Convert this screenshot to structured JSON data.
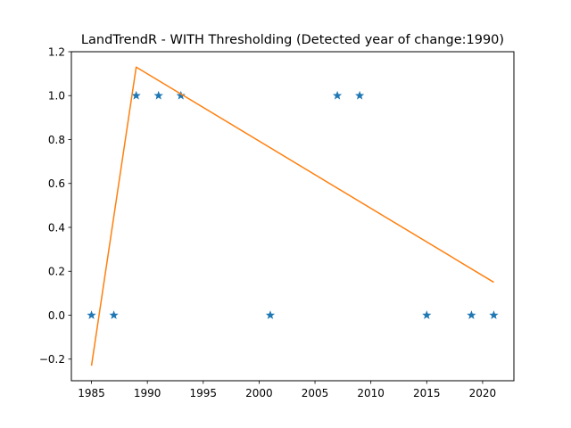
{
  "chart_data": {
    "type": "line",
    "title": "LandTrendR - WITH Thresholding (Detected year of change:1990)",
    "xlabel": "",
    "ylabel": "",
    "xlim": [
      1983.2,
      2022.8
    ],
    "ylim": [
      -0.2985,
      1.2
    ],
    "grid": false,
    "x_ticks": [
      1985,
      1990,
      1995,
      2000,
      2005,
      2010,
      2015,
      2020
    ],
    "y_ticks": [
      -0.2,
      0.0,
      0.2,
      0.4,
      0.6,
      0.8,
      1.0,
      1.2
    ],
    "y_tick_labels": [
      "−0.2",
      "0.0",
      "0.2",
      "0.4",
      "0.6",
      "0.8",
      "1.0",
      "1.2"
    ],
    "series": [
      {
        "kind": "scatter",
        "marker": "star",
        "color": "#1f77b4",
        "points": [
          [
            1985,
            0.0
          ],
          [
            1987,
            0.0
          ],
          [
            1989,
            1.0
          ],
          [
            1991,
            1.0
          ],
          [
            1993,
            1.0
          ],
          [
            2001,
            0.0
          ],
          [
            2007,
            1.0
          ],
          [
            2009,
            1.0
          ],
          [
            2015,
            0.0
          ],
          [
            2019,
            0.0
          ],
          [
            2021,
            0.0
          ]
        ]
      },
      {
        "kind": "line",
        "color": "#ff7f0e",
        "points": [
          [
            1985,
            -0.23
          ],
          [
            1989,
            1.13
          ],
          [
            2021,
            0.15
          ]
        ]
      }
    ]
  }
}
